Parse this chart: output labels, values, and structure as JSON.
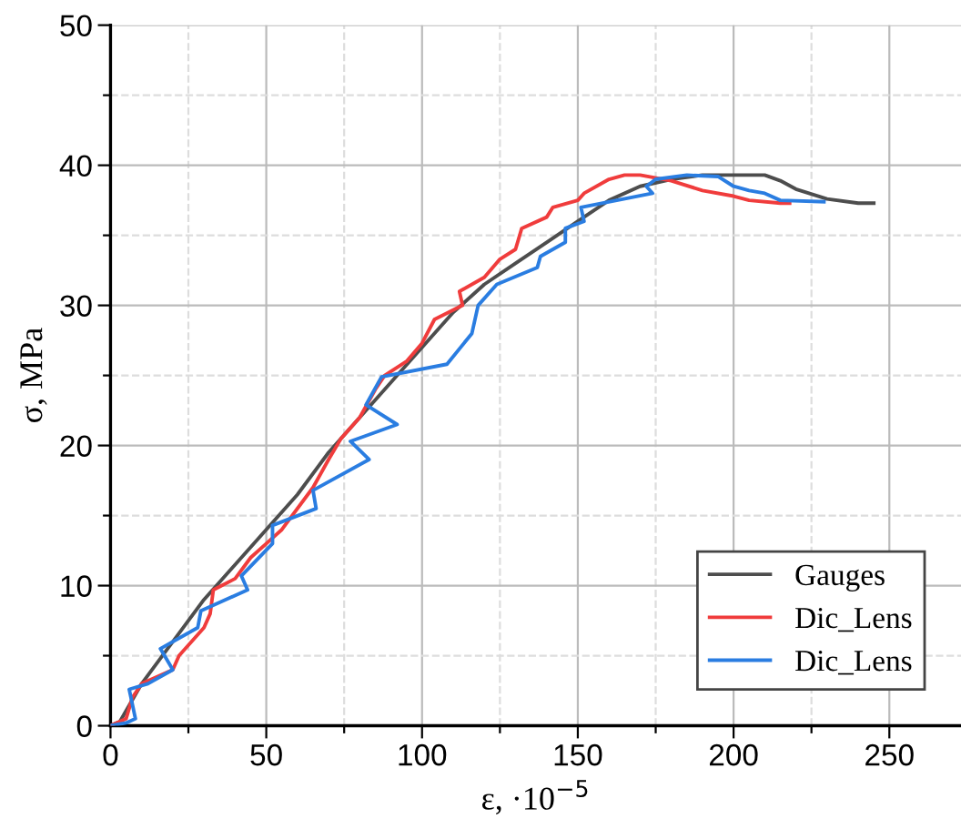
{
  "chart_data": {
    "type": "line",
    "xlabel": "ε, ·10$^{−5}$",
    "ylabel": "σ, MPa",
    "xlim": [
      0,
      273
    ],
    "ylim": [
      0,
      50
    ],
    "xticks": [
      0,
      {
        "value": 25,
        "label": null
      },
      50,
      {
        "value": 75,
        "label": null
      },
      100,
      {
        "value": 125,
        "label": null
      },
      150,
      {
        "value": 175,
        "label": null
      },
      200,
      {
        "value": 225,
        "label": null
      },
      250
    ],
    "yticks": [
      0,
      {
        "value": 5,
        "label": null
      },
      10,
      {
        "value": 15,
        "label": null
      },
      20,
      {
        "value": 25,
        "label": null
      },
      30,
      {
        "value": 35,
        "label": null
      },
      40,
      {
        "value": 45,
        "label": null
      },
      50
    ],
    "grid": true,
    "legend": "bottom right",
    "marker": "none",
    "line_style": "solid",
    "series": [
      {
        "name": "Gauges",
        "color": "#4d4d4d",
        "x": [
          0,
          3,
          10,
          20,
          30,
          40,
          50,
          60,
          70,
          80,
          90,
          100,
          110,
          120,
          130,
          140,
          150,
          160,
          170,
          180,
          190,
          200,
          210,
          215,
          220,
          230,
          240,
          245
        ],
        "values": [
          0,
          0.3,
          3,
          6,
          9,
          11.5,
          14,
          16.5,
          19.5,
          22,
          24.5,
          27,
          29.5,
          31.5,
          33,
          34.5,
          36,
          37.5,
          38.5,
          39,
          39.3,
          39.3,
          39.3,
          38.9,
          38.3,
          37.6,
          37.3,
          37.3
        ]
      },
      {
        "name": "Dic_Lens",
        "color": "#f03c3c",
        "x": [
          0,
          5,
          7,
          10,
          20,
          22,
          30,
          32,
          33,
          40,
          45,
          50,
          55,
          65,
          70,
          74,
          80,
          85,
          88,
          95,
          100,
          104,
          113,
          112,
          120,
          125,
          130,
          132,
          140,
          142,
          150,
          152,
          160,
          165,
          170,
          180,
          190,
          200,
          205,
          215,
          218
        ],
        "values": [
          0,
          0.5,
          2,
          3,
          4,
          5,
          7,
          8,
          9.7,
          10.5,
          12,
          13,
          14,
          17,
          19,
          20.5,
          22,
          24,
          25,
          26,
          27.3,
          29,
          30,
          31,
          32,
          33.3,
          34,
          35.5,
          36.3,
          37,
          37.5,
          38,
          39,
          39.3,
          39.3,
          38.9,
          38.2,
          37.8,
          37.5,
          37.3,
          37.3
        ]
      },
      {
        "name": "Dic_Lens",
        "color": "#2a7de1",
        "x": [
          0,
          5,
          8,
          6,
          12,
          20,
          16,
          28,
          29,
          44,
          42,
          52,
          52,
          66,
          65,
          83,
          77,
          92,
          82,
          87,
          108,
          116,
          118,
          124,
          137,
          138,
          146,
          146,
          152,
          151,
          174,
          172,
          175,
          185,
          195,
          200,
          205,
          210,
          215,
          229
        ],
        "values": [
          0,
          0.2,
          0.5,
          2.6,
          3,
          4,
          5.5,
          7,
          8.2,
          9.7,
          10.7,
          13,
          14.3,
          15.5,
          16.8,
          19,
          20.3,
          21.5,
          22.9,
          24.9,
          25.8,
          28,
          30,
          31.5,
          32.7,
          33.5,
          34.5,
          35.5,
          36,
          37,
          38,
          38.5,
          39,
          39.3,
          39.2,
          38.5,
          38.2,
          38,
          37.5,
          37.4
        ]
      }
    ]
  }
}
